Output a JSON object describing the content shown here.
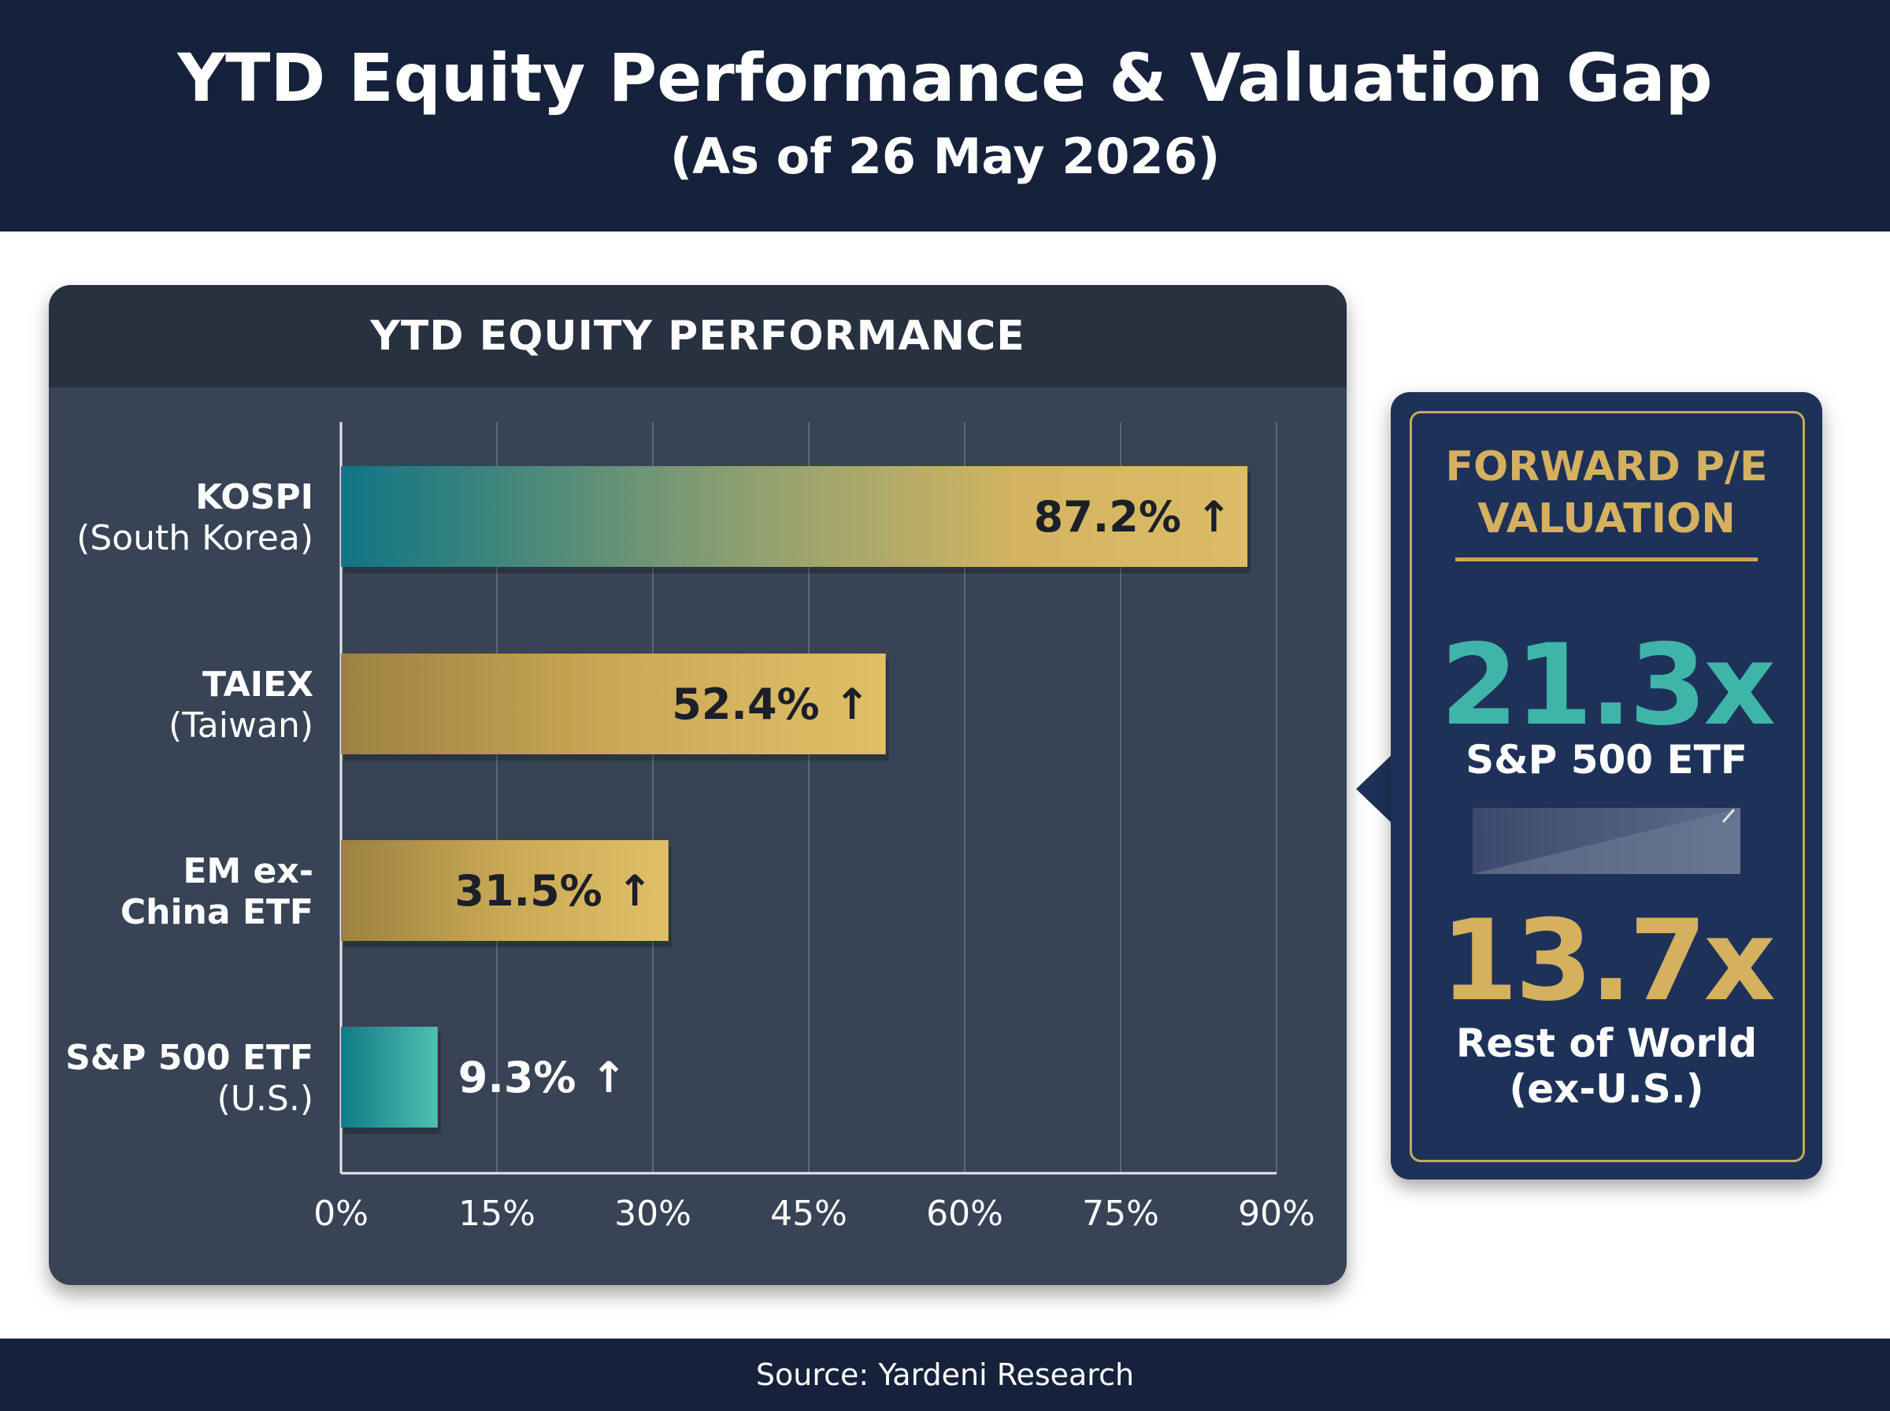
{
  "header": {
    "title": "YTD Equity Performance & Valuation Gap",
    "subtitle": "(As of 26 May 2026)"
  },
  "chart_data": {
    "type": "bar",
    "orientation": "horizontal",
    "title": "YTD EQUITY PERFORMANCE",
    "categories": [
      {
        "name": "KOSPI",
        "sub": "(South Korea)"
      },
      {
        "name": "TAIEX",
        "sub": "(Taiwan)"
      },
      {
        "name": "EM ex-\nChina ETF",
        "sub": ""
      },
      {
        "name": "S&P 500 ETF",
        "sub": "(U.S.)"
      }
    ],
    "values": [
      87.2,
      52.4,
      31.5,
      9.3
    ],
    "value_labels": [
      "87.2% ↑",
      "52.4% ↑",
      "31.5% ↑",
      "9.3% ↑"
    ],
    "xlim": [
      0,
      90
    ],
    "xticks": [
      0,
      15,
      30,
      45,
      60,
      75,
      90
    ],
    "xtick_labels": [
      "0%",
      "15%",
      "30%",
      "45%",
      "60%",
      "75%",
      "90%"
    ],
    "grid": true,
    "colors": {
      "gold": "#d8b762",
      "gold_dark": "#9c8240",
      "teal": "#0f7b86",
      "teal_light": "#46b9ad"
    }
  },
  "valuation_panel": {
    "title": "FORWARD P/E\nVALUATION",
    "items": [
      {
        "value": "21.3x",
        "label": "S&P 500 ETF"
      },
      {
        "value": "13.7x",
        "label": "Rest of World\n(ex-U.S.)"
      }
    ]
  },
  "footer": {
    "source": "Source: Yardeni Research"
  }
}
